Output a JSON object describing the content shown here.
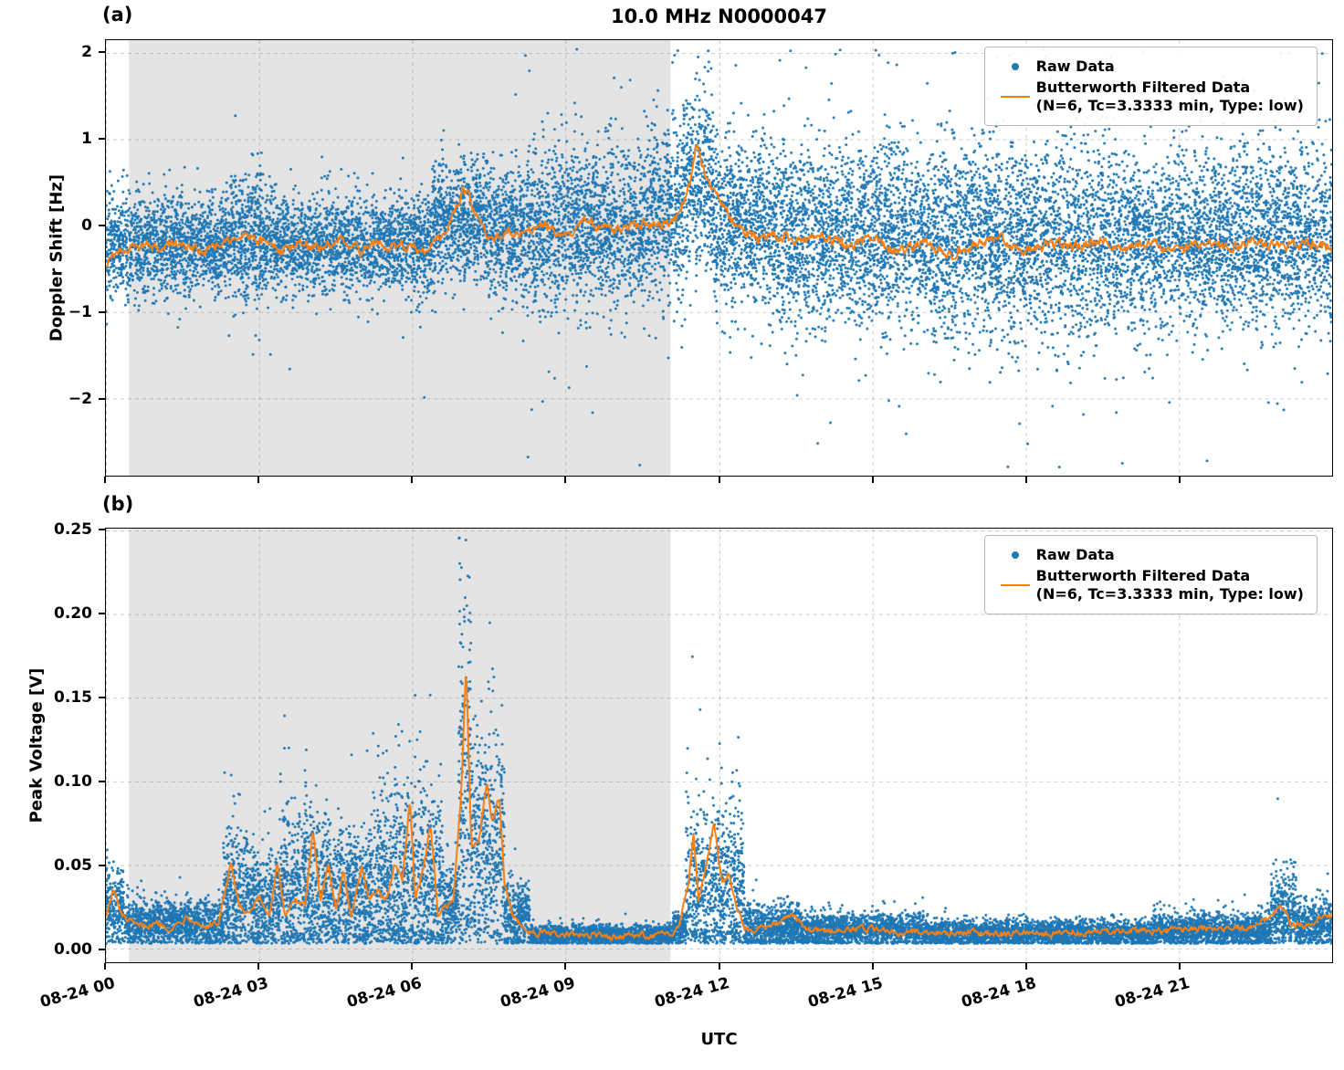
{
  "figure": {
    "title": "10.0 MHz N0000047",
    "xlabel": "UTC",
    "background": "#ffffff"
  },
  "colors": {
    "raw": "#1f77b4",
    "filtered": "#ff7f0e",
    "shade": "rgba(130,130,130,0.22)",
    "grid": "rgba(110,110,110,0.35)",
    "text": "#000000"
  },
  "legend": {
    "raw_label": "Raw Data",
    "filtered_label": "Butterworth Filtered Data",
    "filtered_sublabel": "(N=6, Tc=3.3333 min, Type: low)"
  },
  "chart_data": [
    {
      "id": "doppler",
      "type": "scatter",
      "panel_label": "(a)",
      "ylabel": "Doppler Shift [Hz]",
      "ylim": [
        -2.9,
        2.15
      ],
      "cap": 2.05,
      "floor": -2.85,
      "seed": 42,
      "yticks": [
        {
          "v": 2,
          "label": "2"
        },
        {
          "v": 1,
          "label": "1"
        },
        {
          "v": 0,
          "label": "0"
        },
        {
          "v": -1,
          "label": "−1"
        },
        {
          "v": -2,
          "label": "−2"
        }
      ],
      "xticks": [
        {
          "h": 0,
          "label": "08-24 00"
        },
        {
          "h": 3,
          "label": "08-24 03"
        },
        {
          "h": 6,
          "label": "08-24 06"
        },
        {
          "h": 9,
          "label": "08-24 09"
        },
        {
          "h": 12,
          "label": "08-24 12"
        },
        {
          "h": 15,
          "label": "08-24 15"
        },
        {
          "h": 18,
          "label": "08-24 18"
        },
        {
          "h": 21,
          "label": "08-24 21"
        }
      ],
      "xlim_hours": [
        0,
        24
      ],
      "shade": [
        0.45,
        11.05
      ],
      "raw_envelope": [
        {
          "t0": 0.0,
          "t1": 2.4,
          "mean": -0.22,
          "std": 0.28,
          "n": 1500,
          "tail_frac": 0.02,
          "tail_scale": 2.0
        },
        {
          "t0": 2.4,
          "t1": 3.1,
          "mean": -0.15,
          "std": 0.36,
          "n": 500,
          "tail_frac": 0.03,
          "tail_scale": 2.2
        },
        {
          "t0": 3.1,
          "t1": 6.4,
          "mean": -0.22,
          "std": 0.28,
          "n": 2000,
          "tail_frac": 0.02,
          "tail_scale": 2.0
        },
        {
          "t0": 6.4,
          "t1": 7.4,
          "mean": 0.05,
          "std": 0.35,
          "n": 700,
          "tail_frac": 0.02,
          "tail_scale": 2.0
        },
        {
          "t0": 7.4,
          "t1": 8.2,
          "mean": -0.05,
          "std": 0.38,
          "n": 550,
          "tail_frac": 0.03,
          "tail_scale": 2.0
        },
        {
          "t0": 8.2,
          "t1": 10.6,
          "mean": 0.0,
          "std": 0.45,
          "n": 1600,
          "tail_frac": 0.04,
          "tail_scale": 2.2
        },
        {
          "t0": 10.6,
          "t1": 11.3,
          "mean": 0.15,
          "std": 0.5,
          "n": 480,
          "tail_frac": 0.05,
          "tail_scale": 2.2
        },
        {
          "t0": 11.3,
          "t1": 11.9,
          "mean": 0.55,
          "std": 0.5,
          "n": 420,
          "tail_frac": 0.05,
          "tail_scale": 2.0
        },
        {
          "t0": 11.9,
          "t1": 13.0,
          "mean": 0.05,
          "std": 0.5,
          "n": 750,
          "tail_frac": 0.04,
          "tail_scale": 2.0
        },
        {
          "t0": 13.0,
          "t1": 16.0,
          "mean": -0.1,
          "std": 0.52,
          "n": 2000,
          "tail_frac": 0.04,
          "tail_scale": 2.2
        },
        {
          "t0": 16.0,
          "t1": 20.0,
          "mean": -0.18,
          "std": 0.55,
          "n": 2600,
          "tail_frac": 0.04,
          "tail_scale": 2.3
        },
        {
          "t0": 20.0,
          "t1": 24.0,
          "mean": -0.15,
          "std": 0.5,
          "n": 2600,
          "tail_frac": 0.04,
          "tail_scale": 2.2
        }
      ],
      "filtered_line": {
        "jitter": 0.07,
        "points": [
          [
            0,
            -0.45
          ],
          [
            0.3,
            -0.3
          ],
          [
            0.6,
            -0.2
          ],
          [
            1,
            -0.25
          ],
          [
            1.4,
            -0.2
          ],
          [
            1.8,
            -0.3
          ],
          [
            2.2,
            -0.2
          ],
          [
            2.6,
            -0.1
          ],
          [
            3,
            -0.15
          ],
          [
            3.4,
            -0.3
          ],
          [
            3.8,
            -0.2
          ],
          [
            4.2,
            -0.25
          ],
          [
            4.6,
            -0.15
          ],
          [
            5,
            -0.3
          ],
          [
            5.4,
            -0.2
          ],
          [
            5.8,
            -0.25
          ],
          [
            6.2,
            -0.3
          ],
          [
            6.5,
            -0.15
          ],
          [
            6.8,
            0.1
          ],
          [
            7.0,
            0.42
          ],
          [
            7.1,
            0.35
          ],
          [
            7.3,
            0.0
          ],
          [
            7.6,
            -0.15
          ],
          [
            7.9,
            -0.05
          ],
          [
            8.2,
            -0.1
          ],
          [
            8.6,
            0.0
          ],
          [
            9,
            -0.1
          ],
          [
            9.4,
            0.05
          ],
          [
            9.8,
            -0.05
          ],
          [
            10.2,
            0.0
          ],
          [
            10.6,
            0.05
          ],
          [
            11.0,
            0.0
          ],
          [
            11.2,
            0.1
          ],
          [
            11.45,
            0.55
          ],
          [
            11.55,
            0.95
          ],
          [
            11.65,
            0.75
          ],
          [
            11.8,
            0.45
          ],
          [
            12.0,
            0.3
          ],
          [
            12.2,
            0.1
          ],
          [
            12.5,
            -0.05
          ],
          [
            12.8,
            -0.15
          ],
          [
            13.2,
            -0.1
          ],
          [
            13.6,
            -0.2
          ],
          [
            14,
            -0.1
          ],
          [
            14.5,
            -0.25
          ],
          [
            15,
            -0.15
          ],
          [
            15.5,
            -0.3
          ],
          [
            16,
            -0.2
          ],
          [
            16.5,
            -0.35
          ],
          [
            17,
            -0.25
          ],
          [
            17.5,
            -0.15
          ],
          [
            18,
            -0.3
          ],
          [
            18.5,
            -0.2
          ],
          [
            19,
            -0.25
          ],
          [
            19.5,
            -0.15
          ],
          [
            20,
            -0.25
          ],
          [
            20.5,
            -0.2
          ],
          [
            21,
            -0.3
          ],
          [
            21.5,
            -0.2
          ],
          [
            22,
            -0.25
          ],
          [
            22.5,
            -0.15
          ],
          [
            23,
            -0.25
          ],
          [
            23.5,
            -0.2
          ],
          [
            24,
            -0.25
          ]
        ]
      }
    },
    {
      "id": "voltage",
      "type": "scatter",
      "panel_label": "(b)",
      "ylabel": "Peak Voltage [V]",
      "ylim": [
        -0.0082,
        0.2511
      ],
      "cap": 0.246,
      "floor": 0.003,
      "seed": 7,
      "yticks": [
        {
          "v": 0.25,
          "label": "0.25"
        },
        {
          "v": 0.2,
          "label": "0.20"
        },
        {
          "v": 0.15,
          "label": "0.15"
        },
        {
          "v": 0.1,
          "label": "0.10"
        },
        {
          "v": 0.05,
          "label": "0.05"
        },
        {
          "v": 0.0,
          "label": "0.00"
        }
      ],
      "xticks": [
        {
          "h": 0,
          "label": "08-24 00"
        },
        {
          "h": 3,
          "label": "08-24 03"
        },
        {
          "h": 6,
          "label": "08-24 06"
        },
        {
          "h": 9,
          "label": "08-24 09"
        },
        {
          "h": 12,
          "label": "08-24 12"
        },
        {
          "h": 15,
          "label": "08-24 15"
        },
        {
          "h": 18,
          "label": "08-24 18"
        },
        {
          "h": 21,
          "label": "08-24 21"
        }
      ],
      "xlim_hours": [
        0,
        24
      ],
      "shade": [
        0.45,
        11.05
      ],
      "raw_envelope": [
        {
          "t0": 0.0,
          "t1": 0.35,
          "mean": 0.025,
          "std": 0.012,
          "n": 240,
          "tail_frac": 0.05,
          "tail_scale": 2.0
        },
        {
          "t0": 0.35,
          "t1": 2.3,
          "mean": 0.015,
          "std": 0.007,
          "n": 1250,
          "tail_frac": 0.04,
          "tail_scale": 2.0
        },
        {
          "t0": 2.3,
          "t1": 2.8,
          "mean": 0.03,
          "std": 0.02,
          "n": 350,
          "tail_frac": 0.06,
          "tail_scale": 2.0
        },
        {
          "t0": 2.8,
          "t1": 3.4,
          "mean": 0.025,
          "std": 0.016,
          "n": 420,
          "tail_frac": 0.06,
          "tail_scale": 2.0
        },
        {
          "t0": 3.4,
          "t1": 4.4,
          "mean": 0.035,
          "std": 0.025,
          "n": 700,
          "tail_frac": 0.06,
          "tail_scale": 2.0
        },
        {
          "t0": 4.4,
          "t1": 5.2,
          "mean": 0.03,
          "std": 0.02,
          "n": 560,
          "tail_frac": 0.05,
          "tail_scale": 2.0
        },
        {
          "t0": 5.2,
          "t1": 6.2,
          "mean": 0.04,
          "std": 0.03,
          "n": 700,
          "tail_frac": 0.06,
          "tail_scale": 2.0
        },
        {
          "t0": 6.2,
          "t1": 6.6,
          "mean": 0.04,
          "std": 0.03,
          "n": 280,
          "tail_frac": 0.06,
          "tail_scale": 2.0
        },
        {
          "t0": 6.6,
          "t1": 6.9,
          "mean": 0.025,
          "std": 0.012,
          "n": 210,
          "tail_frac": 0.04,
          "tail_scale": 2.0
        },
        {
          "t0": 6.9,
          "t1": 7.15,
          "mean": 0.09,
          "std": 0.06,
          "n": 230,
          "tail_frac": 0.08,
          "tail_scale": 1.8
        },
        {
          "t0": 7.15,
          "t1": 7.8,
          "mean": 0.06,
          "std": 0.035,
          "n": 460,
          "tail_frac": 0.06,
          "tail_scale": 1.8
        },
        {
          "t0": 7.8,
          "t1": 8.3,
          "mean": 0.02,
          "std": 0.01,
          "n": 350,
          "tail_frac": 0.04,
          "tail_scale": 2.0
        },
        {
          "t0": 8.3,
          "t1": 11.1,
          "mean": 0.008,
          "std": 0.003,
          "n": 1800,
          "tail_frac": 0.02,
          "tail_scale": 2.0
        },
        {
          "t0": 11.1,
          "t1": 11.35,
          "mean": 0.012,
          "std": 0.005,
          "n": 170,
          "tail_frac": 0.03,
          "tail_scale": 2.0
        },
        {
          "t0": 11.35,
          "t1": 12.5,
          "mean": 0.035,
          "std": 0.025,
          "n": 800,
          "tail_frac": 0.05,
          "tail_scale": 2.0
        },
        {
          "t0": 12.5,
          "t1": 13.6,
          "mean": 0.013,
          "std": 0.007,
          "n": 750,
          "tail_frac": 0.04,
          "tail_scale": 2.0
        },
        {
          "t0": 13.6,
          "t1": 16.0,
          "mean": 0.011,
          "std": 0.005,
          "n": 1550,
          "tail_frac": 0.03,
          "tail_scale": 2.0
        },
        {
          "t0": 16.0,
          "t1": 20.5,
          "mean": 0.009,
          "std": 0.004,
          "n": 2900,
          "tail_frac": 0.02,
          "tail_scale": 2.0
        },
        {
          "t0": 20.5,
          "t1": 22.8,
          "mean": 0.011,
          "std": 0.005,
          "n": 1500,
          "tail_frac": 0.03,
          "tail_scale": 2.0
        },
        {
          "t0": 22.8,
          "t1": 23.3,
          "mean": 0.022,
          "std": 0.012,
          "n": 340,
          "tail_frac": 0.05,
          "tail_scale": 2.0
        },
        {
          "t0": 23.3,
          "t1": 24.0,
          "mean": 0.014,
          "std": 0.007,
          "n": 460,
          "tail_frac": 0.04,
          "tail_scale": 2.0
        }
      ],
      "filtered_line": {
        "jitter": 0.0022,
        "points": [
          [
            0,
            0.02
          ],
          [
            0.15,
            0.035
          ],
          [
            0.3,
            0.02
          ],
          [
            0.6,
            0.013
          ],
          [
            1,
            0.015
          ],
          [
            1.3,
            0.012
          ],
          [
            1.6,
            0.02
          ],
          [
            1.9,
            0.013
          ],
          [
            2.2,
            0.015
          ],
          [
            2.45,
            0.05
          ],
          [
            2.6,
            0.025
          ],
          [
            2.8,
            0.02
          ],
          [
            3.0,
            0.03
          ],
          [
            3.2,
            0.02
          ],
          [
            3.35,
            0.05
          ],
          [
            3.5,
            0.02
          ],
          [
            3.7,
            0.03
          ],
          [
            3.9,
            0.025
          ],
          [
            4.05,
            0.07
          ],
          [
            4.2,
            0.03
          ],
          [
            4.35,
            0.05
          ],
          [
            4.5,
            0.025
          ],
          [
            4.65,
            0.045
          ],
          [
            4.8,
            0.02
          ],
          [
            5.0,
            0.05
          ],
          [
            5.15,
            0.03
          ],
          [
            5.3,
            0.035
          ],
          [
            5.5,
            0.03
          ],
          [
            5.65,
            0.05
          ],
          [
            5.8,
            0.04
          ],
          [
            5.95,
            0.09
          ],
          [
            6.05,
            0.03
          ],
          [
            6.2,
            0.045
          ],
          [
            6.35,
            0.075
          ],
          [
            6.5,
            0.02
          ],
          [
            6.65,
            0.025
          ],
          [
            6.8,
            0.03
          ],
          [
            6.95,
            0.09
          ],
          [
            7.05,
            0.17
          ],
          [
            7.15,
            0.06
          ],
          [
            7.3,
            0.065
          ],
          [
            7.45,
            0.1
          ],
          [
            7.55,
            0.075
          ],
          [
            7.7,
            0.09
          ],
          [
            7.8,
            0.04
          ],
          [
            7.95,
            0.02
          ],
          [
            8.1,
            0.015
          ],
          [
            8.3,
            0.01
          ],
          [
            8.6,
            0.009
          ],
          [
            9,
            0.008
          ],
          [
            9.5,
            0.008
          ],
          [
            10,
            0.007
          ],
          [
            10.5,
            0.008
          ],
          [
            11,
            0.008
          ],
          [
            11.2,
            0.012
          ],
          [
            11.4,
            0.04
          ],
          [
            11.5,
            0.07
          ],
          [
            11.6,
            0.03
          ],
          [
            11.75,
            0.05
          ],
          [
            11.9,
            0.075
          ],
          [
            12.05,
            0.04
          ],
          [
            12.2,
            0.045
          ],
          [
            12.35,
            0.025
          ],
          [
            12.5,
            0.012
          ],
          [
            12.8,
            0.012
          ],
          [
            13.1,
            0.015
          ],
          [
            13.4,
            0.02
          ],
          [
            13.7,
            0.012
          ],
          [
            14,
            0.01
          ],
          [
            14.5,
            0.012
          ],
          [
            15,
            0.012
          ],
          [
            15.5,
            0.01
          ],
          [
            16,
            0.01
          ],
          [
            16.5,
            0.009
          ],
          [
            17,
            0.01
          ],
          [
            17.5,
            0.009
          ],
          [
            18,
            0.01
          ],
          [
            18.5,
            0.009
          ],
          [
            19,
            0.01
          ],
          [
            19.5,
            0.01
          ],
          [
            20,
            0.011
          ],
          [
            20.5,
            0.01
          ],
          [
            21,
            0.011
          ],
          [
            21.5,
            0.012
          ],
          [
            22,
            0.012
          ],
          [
            22.5,
            0.013
          ],
          [
            23,
            0.025
          ],
          [
            23.2,
            0.015
          ],
          [
            23.5,
            0.013
          ],
          [
            23.8,
            0.018
          ],
          [
            24,
            0.02
          ]
        ]
      }
    }
  ]
}
